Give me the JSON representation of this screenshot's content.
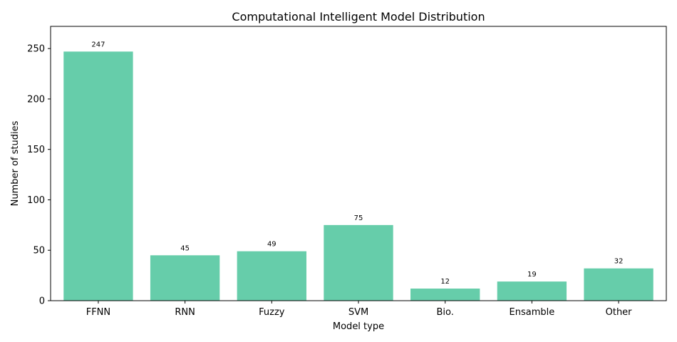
{
  "chart_data": {
    "type": "bar",
    "title": "Computational Intelligent Model Distribution",
    "xlabel": "Model type",
    "ylabel": "Number of studies",
    "categories": [
      "FFNN",
      "RNN",
      "Fuzzy",
      "SVM",
      "Bio.",
      "Ensamble",
      "Other"
    ],
    "values": [
      247,
      45,
      49,
      75,
      12,
      19,
      32
    ],
    "ylim": [
      0,
      272
    ],
    "yticks": [
      0,
      50,
      100,
      150,
      200,
      250
    ],
    "bar_color": "#66cdaa",
    "grid": false,
    "legend": "none"
  }
}
